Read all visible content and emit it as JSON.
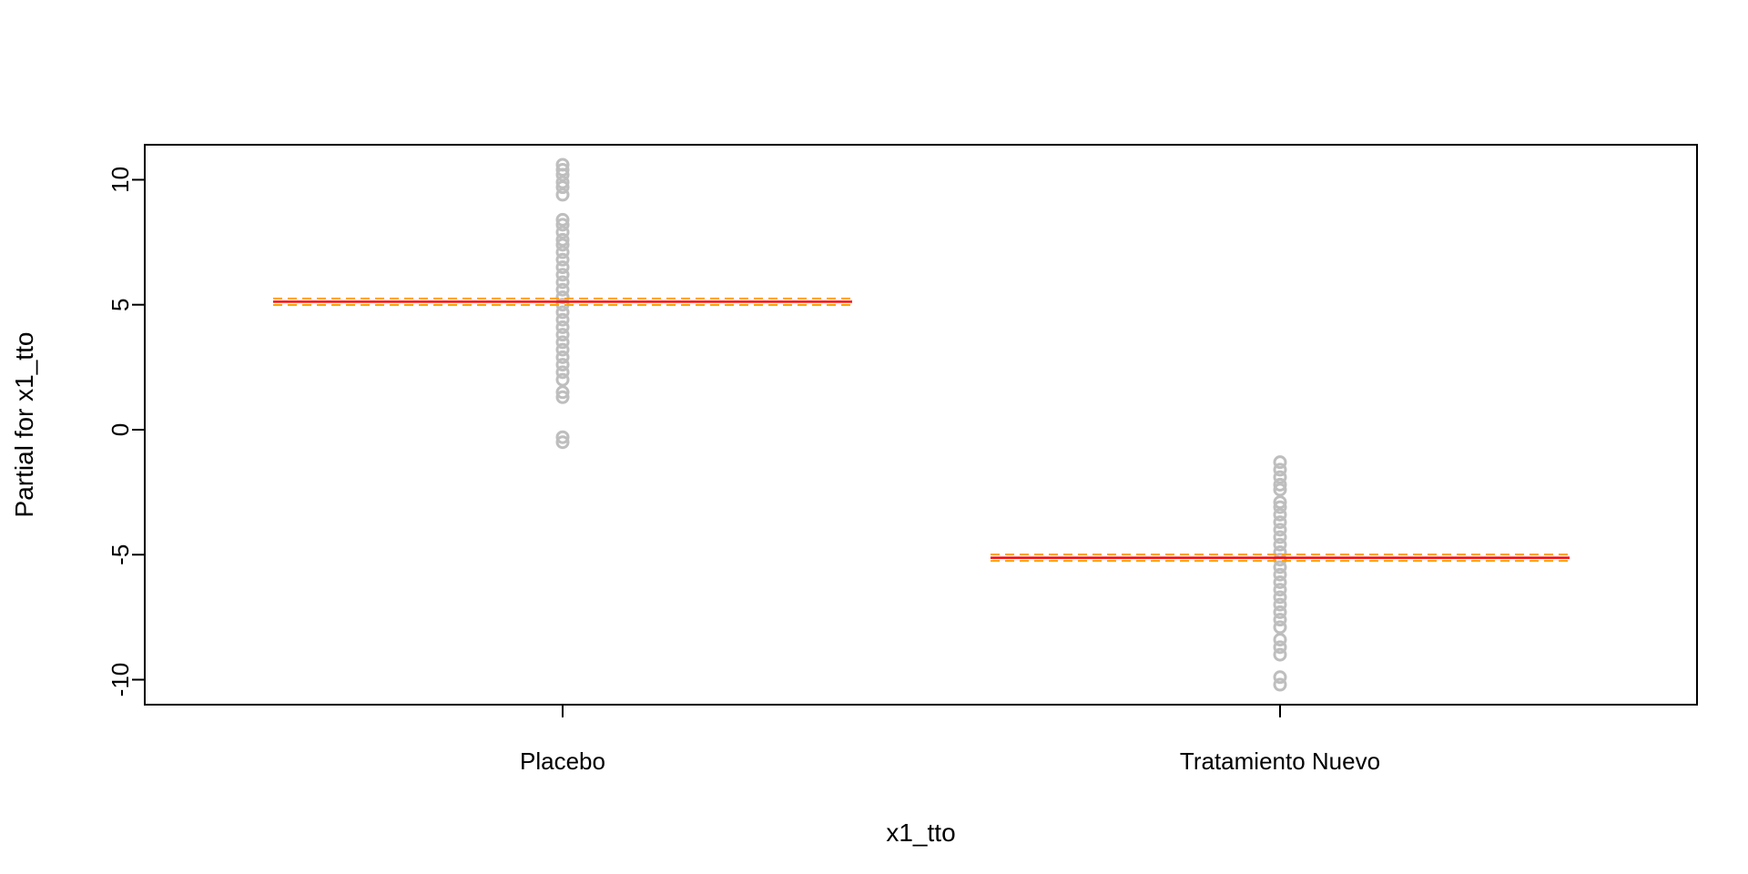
{
  "chart_data": {
    "type": "termplot",
    "title": "",
    "xlabel": "x1_tto",
    "ylabel": "Partial for x1_tto",
    "ylim": [
      -11,
      11.4
    ],
    "yticks": [
      -10,
      -5,
      0,
      5,
      10
    ],
    "yticks_label": [
      "-10",
      "-5",
      "0",
      "5",
      "10"
    ],
    "categories": [
      "Placebo",
      "Tratamiento Nuevo"
    ],
    "series": [
      {
        "category": "Placebo",
        "fit": 5.12,
        "se_upper": 5.25,
        "se_lower": 4.99,
        "partial_residuals": [
          -0.5,
          -0.3,
          1.3,
          1.5,
          2.0,
          2.3,
          2.6,
          2.9,
          3.2,
          3.5,
          3.8,
          4.1,
          4.4,
          4.7,
          5.0,
          5.3,
          5.6,
          5.9,
          6.2,
          6.5,
          6.8,
          7.1,
          7.4,
          7.6,
          7.9,
          8.2,
          8.4,
          9.4,
          9.7,
          9.9,
          10.2,
          10.4,
          10.6
        ]
      },
      {
        "category": "Tratamiento Nuevo",
        "fit": -5.12,
        "se_upper": -4.99,
        "se_lower": -5.25,
        "partial_residuals": [
          -10.2,
          -9.9,
          -9.0,
          -8.7,
          -8.4,
          -7.9,
          -7.6,
          -7.3,
          -7.0,
          -6.7,
          -6.4,
          -6.1,
          -5.8,
          -5.5,
          -5.2,
          -4.9,
          -4.6,
          -4.3,
          -4.0,
          -3.7,
          -3.4,
          -3.1,
          -2.9,
          -2.4,
          -2.2,
          -1.9,
          -1.6,
          -1.3
        ]
      }
    ],
    "colors": {
      "points": "#bebebe",
      "fit_line": "#ff0000",
      "se_lines": "#ffa500",
      "axes": "#000000"
    }
  }
}
